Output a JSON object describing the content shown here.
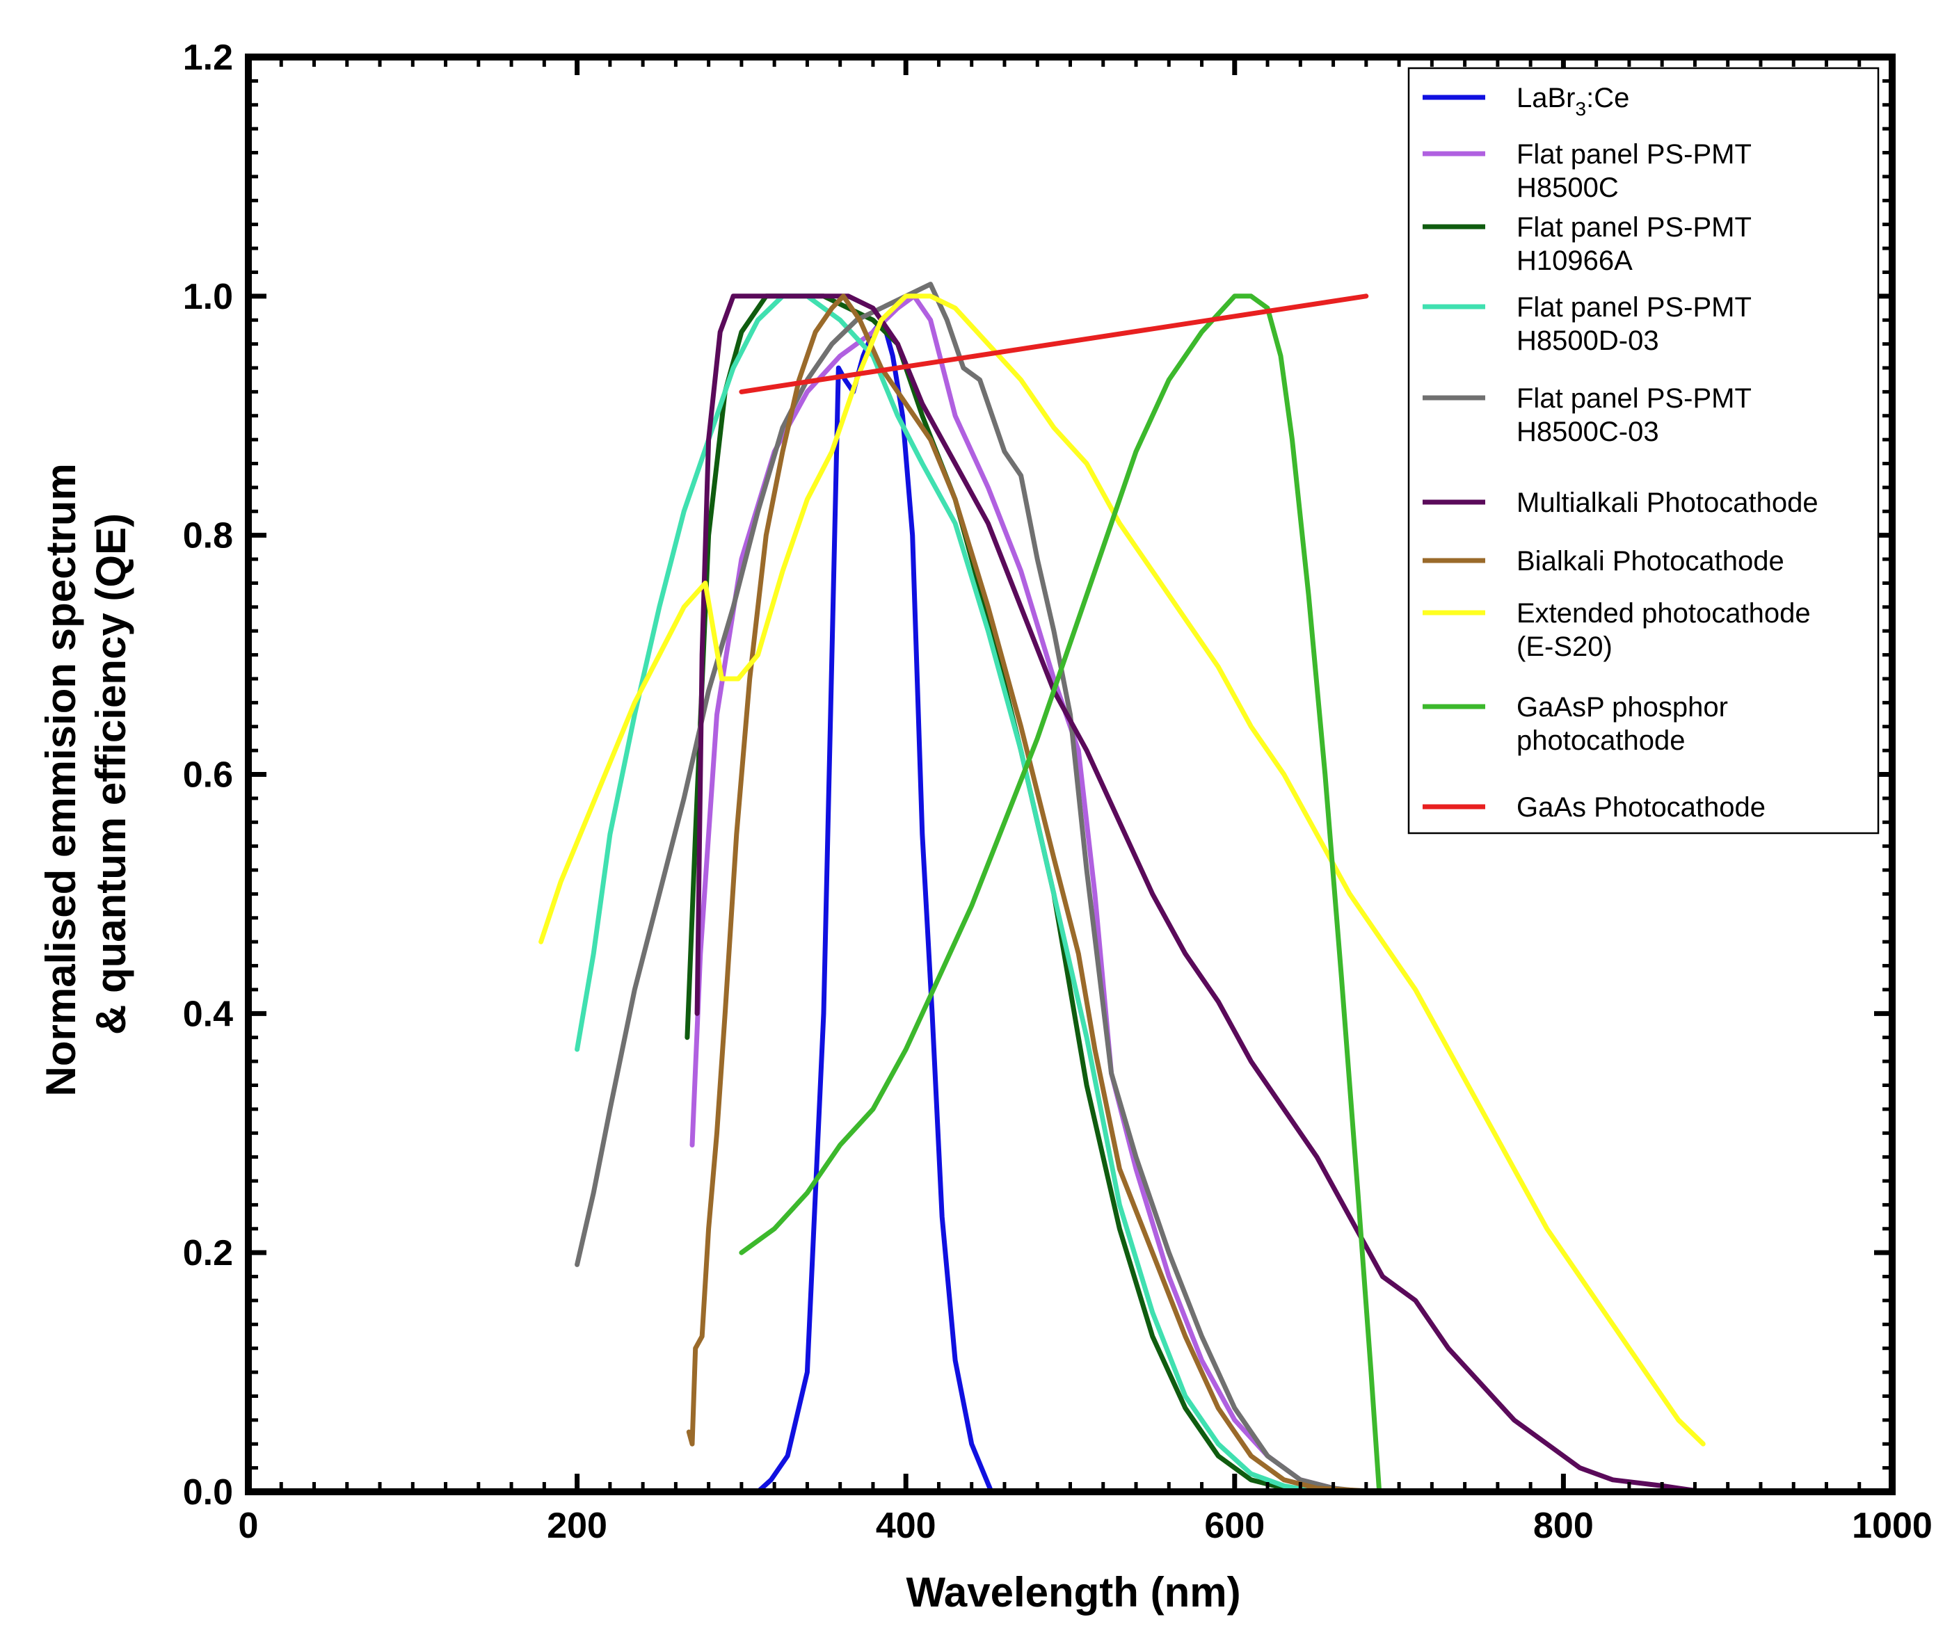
{
  "chart_data": {
    "type": "line",
    "title": "",
    "xlabel": "Wavelength (nm)",
    "ylabel_lines": [
      "Normalised emmision spectrum",
      "& quantum efficiency (QE)"
    ],
    "xlim": [
      0,
      1000
    ],
    "ylim": [
      0,
      1.2
    ],
    "x_ticks": [
      0,
      200,
      400,
      600,
      800,
      1000
    ],
    "x_tick_labels": [
      "0",
      "200",
      "400",
      "600",
      "800",
      "1000"
    ],
    "y_ticks": [
      0,
      0.2,
      0.4,
      0.6,
      0.8,
      1.0,
      1.2
    ],
    "y_tick_labels": [
      "0.0",
      "0.2",
      "0.4",
      "0.6",
      "0.8",
      "1.0",
      "1.2"
    ],
    "grid": false,
    "legend_position": "top-right",
    "series": [
      {
        "name": "LaBr3:Ce",
        "legend_main": "LaBr",
        "legend_sub": "3",
        "legend_tail": ":Ce",
        "color": "#1010e0",
        "points": [
          [
            310,
            0
          ],
          [
            318,
            0.01
          ],
          [
            328,
            0.03
          ],
          [
            340,
            0.1
          ],
          [
            350,
            0.4
          ],
          [
            355,
            0.7
          ],
          [
            359,
            0.94
          ],
          [
            363,
            0.93
          ],
          [
            368,
            0.92
          ],
          [
            374,
            0.95
          ],
          [
            380,
            0.97
          ],
          [
            386,
            0.98
          ],
          [
            392,
            0.95
          ],
          [
            398,
            0.9
          ],
          [
            404,
            0.8
          ],
          [
            410,
            0.55
          ],
          [
            416,
            0.4
          ],
          [
            422,
            0.23
          ],
          [
            430,
            0.11
          ],
          [
            440,
            0.04
          ],
          [
            452,
            0
          ]
        ]
      },
      {
        "name": "Flat panel PS-PMT H8500C",
        "legend_lines": [
          "Flat panel PS-PMT",
          "H8500C"
        ],
        "color": "#b060e0",
        "points": [
          [
            270,
            0.29
          ],
          [
            275,
            0.45
          ],
          [
            285,
            0.65
          ],
          [
            300,
            0.78
          ],
          [
            320,
            0.87
          ],
          [
            340,
            0.92
          ],
          [
            360,
            0.95
          ],
          [
            380,
            0.97
          ],
          [
            395,
            0.99
          ],
          [
            405,
            1.0
          ],
          [
            415,
            0.98
          ],
          [
            430,
            0.9
          ],
          [
            450,
            0.84
          ],
          [
            470,
            0.77
          ],
          [
            490,
            0.68
          ],
          [
            505,
            0.62
          ],
          [
            515,
            0.5
          ],
          [
            525,
            0.35
          ],
          [
            540,
            0.27
          ],
          [
            560,
            0.18
          ],
          [
            580,
            0.11
          ],
          [
            600,
            0.06
          ],
          [
            620,
            0.03
          ],
          [
            640,
            0.01
          ],
          [
            660,
            0.003
          ],
          [
            675,
            0
          ]
        ]
      },
      {
        "name": "Flat panel PS-PMT H10966A",
        "legend_lines": [
          "Flat panel PS-PMT",
          "H10966A"
        ],
        "color": "#0f5c0f",
        "points": [
          [
            267,
            0.38
          ],
          [
            272,
            0.55
          ],
          [
            280,
            0.8
          ],
          [
            290,
            0.92
          ],
          [
            300,
            0.97
          ],
          [
            315,
            1.0
          ],
          [
            330,
            1.0
          ],
          [
            350,
            1.0
          ],
          [
            365,
            0.99
          ],
          [
            380,
            0.98
          ],
          [
            395,
            0.96
          ],
          [
            410,
            0.9
          ],
          [
            430,
            0.83
          ],
          [
            450,
            0.73
          ],
          [
            470,
            0.62
          ],
          [
            490,
            0.5
          ],
          [
            510,
            0.34
          ],
          [
            530,
            0.22
          ],
          [
            550,
            0.13
          ],
          [
            570,
            0.07
          ],
          [
            590,
            0.03
          ],
          [
            610,
            0.01
          ],
          [
            630,
            0.003
          ],
          [
            645,
            0
          ]
        ]
      },
      {
        "name": "Flat panel PS-PMT H8500D-03",
        "legend_lines": [
          "Flat panel PS-PMT",
          "H8500D-03"
        ],
        "color": "#40e0b0",
        "points": [
          [
            200,
            0.37
          ],
          [
            210,
            0.45
          ],
          [
            220,
            0.55
          ],
          [
            235,
            0.65
          ],
          [
            250,
            0.74
          ],
          [
            265,
            0.82
          ],
          [
            280,
            0.88
          ],
          [
            295,
            0.94
          ],
          [
            310,
            0.98
          ],
          [
            325,
            1.0
          ],
          [
            340,
            1.0
          ],
          [
            360,
            0.98
          ],
          [
            380,
            0.95
          ],
          [
            395,
            0.9
          ],
          [
            410,
            0.86
          ],
          [
            430,
            0.81
          ],
          [
            450,
            0.72
          ],
          [
            470,
            0.62
          ],
          [
            490,
            0.5
          ],
          [
            510,
            0.38
          ],
          [
            530,
            0.24
          ],
          [
            550,
            0.15
          ],
          [
            570,
            0.08
          ],
          [
            590,
            0.04
          ],
          [
            610,
            0.015
          ],
          [
            630,
            0.005
          ],
          [
            650,
            0
          ]
        ]
      },
      {
        "name": "Flat panel PS-PMT H8500C-03",
        "legend_lines": [
          "Flat panel PS-PMT",
          "H8500C-03"
        ],
        "color": "#707070",
        "points": [
          [
            200,
            0.19
          ],
          [
            210,
            0.25
          ],
          [
            220,
            0.32
          ],
          [
            235,
            0.42
          ],
          [
            250,
            0.5
          ],
          [
            265,
            0.58
          ],
          [
            280,
            0.67
          ],
          [
            295,
            0.74
          ],
          [
            310,
            0.82
          ],
          [
            325,
            0.89
          ],
          [
            340,
            0.93
          ],
          [
            355,
            0.96
          ],
          [
            370,
            0.98
          ],
          [
            385,
            0.99
          ],
          [
            400,
            1.0
          ],
          [
            415,
            1.01
          ],
          [
            425,
            0.98
          ],
          [
            435,
            0.94
          ],
          [
            445,
            0.93
          ],
          [
            460,
            0.87
          ],
          [
            470,
            0.85
          ],
          [
            480,
            0.78
          ],
          [
            490,
            0.72
          ],
          [
            500,
            0.65
          ],
          [
            510,
            0.52
          ],
          [
            525,
            0.35
          ],
          [
            540,
            0.28
          ],
          [
            560,
            0.2
          ],
          [
            580,
            0.13
          ],
          [
            600,
            0.07
          ],
          [
            620,
            0.03
          ],
          [
            640,
            0.01
          ],
          [
            660,
            0.003
          ],
          [
            680,
            0
          ]
        ]
      },
      {
        "name": "Multialkali Photocathode",
        "legend_lines": [
          "Multialkali Photocathode"
        ],
        "color": "#5a0a5a",
        "points": [
          [
            273,
            0.4
          ],
          [
            276,
            0.7
          ],
          [
            280,
            0.88
          ],
          [
            287,
            0.97
          ],
          [
            295,
            1.0
          ],
          [
            310,
            1.0
          ],
          [
            325,
            1.0
          ],
          [
            345,
            1.0
          ],
          [
            365,
            1.0
          ],
          [
            380,
            0.99
          ],
          [
            395,
            0.96
          ],
          [
            410,
            0.91
          ],
          [
            430,
            0.86
          ],
          [
            450,
            0.81
          ],
          [
            470,
            0.74
          ],
          [
            490,
            0.67
          ],
          [
            510,
            0.62
          ],
          [
            530,
            0.56
          ],
          [
            550,
            0.5
          ],
          [
            570,
            0.45
          ],
          [
            590,
            0.41
          ],
          [
            610,
            0.36
          ],
          [
            630,
            0.32
          ],
          [
            650,
            0.28
          ],
          [
            670,
            0.23
          ],
          [
            690,
            0.18
          ],
          [
            710,
            0.16
          ],
          [
            730,
            0.12
          ],
          [
            750,
            0.09
          ],
          [
            770,
            0.06
          ],
          [
            790,
            0.04
          ],
          [
            810,
            0.02
          ],
          [
            830,
            0.01
          ],
          [
            860,
            0.005
          ],
          [
            885,
            0
          ]
        ]
      },
      {
        "name": "Bialkali Photocathode",
        "legend_lines": [
          "Bialkali Photocathode"
        ],
        "color": "#9a6a2a",
        "points": [
          [
            268,
            0.05
          ],
          [
            270,
            0.04
          ],
          [
            272,
            0.12
          ],
          [
            276,
            0.13
          ],
          [
            280,
            0.22
          ],
          [
            285,
            0.3
          ],
          [
            290,
            0.4
          ],
          [
            297,
            0.55
          ],
          [
            305,
            0.68
          ],
          [
            315,
            0.8
          ],
          [
            325,
            0.87
          ],
          [
            335,
            0.93
          ],
          [
            345,
            0.97
          ],
          [
            355,
            0.99
          ],
          [
            362,
            1.0
          ],
          [
            372,
            0.98
          ],
          [
            385,
            0.94
          ],
          [
            400,
            0.91
          ],
          [
            415,
            0.88
          ],
          [
            430,
            0.83
          ],
          [
            450,
            0.74
          ],
          [
            470,
            0.64
          ],
          [
            490,
            0.53
          ],
          [
            505,
            0.45
          ],
          [
            515,
            0.37
          ],
          [
            530,
            0.27
          ],
          [
            550,
            0.2
          ],
          [
            570,
            0.13
          ],
          [
            590,
            0.07
          ],
          [
            610,
            0.03
          ],
          [
            630,
            0.01
          ],
          [
            650,
            0.003
          ],
          [
            690,
            0
          ]
        ]
      },
      {
        "name": "Extended photocathode (E-S20)",
        "legend_lines": [
          "Extended photocathode",
          "(E-S20)"
        ],
        "color": "#ffff20",
        "points": [
          [
            178,
            0.46
          ],
          [
            190,
            0.51
          ],
          [
            205,
            0.56
          ],
          [
            220,
            0.61
          ],
          [
            235,
            0.66
          ],
          [
            250,
            0.7
          ],
          [
            265,
            0.74
          ],
          [
            278,
            0.76
          ],
          [
            288,
            0.68
          ],
          [
            298,
            0.68
          ],
          [
            310,
            0.7
          ],
          [
            325,
            0.77
          ],
          [
            340,
            0.83
          ],
          [
            355,
            0.87
          ],
          [
            370,
            0.93
          ],
          [
            385,
            0.98
          ],
          [
            400,
            1.0
          ],
          [
            415,
            1.0
          ],
          [
            430,
            0.99
          ],
          [
            450,
            0.96
          ],
          [
            470,
            0.93
          ],
          [
            490,
            0.89
          ],
          [
            510,
            0.86
          ],
          [
            530,
            0.81
          ],
          [
            550,
            0.77
          ],
          [
            570,
            0.73
          ],
          [
            590,
            0.69
          ],
          [
            610,
            0.64
          ],
          [
            630,
            0.6
          ],
          [
            650,
            0.55
          ],
          [
            670,
            0.5
          ],
          [
            690,
            0.46
          ],
          [
            710,
            0.42
          ],
          [
            730,
            0.37
          ],
          [
            750,
            0.32
          ],
          [
            770,
            0.27
          ],
          [
            790,
            0.22
          ],
          [
            810,
            0.18
          ],
          [
            830,
            0.14
          ],
          [
            850,
            0.1
          ],
          [
            870,
            0.06
          ],
          [
            885,
            0.04
          ]
        ]
      },
      {
        "name": "GaAsP phosphor photocathode",
        "legend_lines": [
          "GaAsP phosphor",
          "photocathode"
        ],
        "color": "#3cb82c",
        "points": [
          [
            300,
            0.2
          ],
          [
            320,
            0.22
          ],
          [
            340,
            0.25
          ],
          [
            360,
            0.29
          ],
          [
            380,
            0.32
          ],
          [
            400,
            0.37
          ],
          [
            420,
            0.43
          ],
          [
            440,
            0.49
          ],
          [
            460,
            0.56
          ],
          [
            480,
            0.63
          ],
          [
            500,
            0.71
          ],
          [
            520,
            0.79
          ],
          [
            540,
            0.87
          ],
          [
            560,
            0.93
          ],
          [
            580,
            0.97
          ],
          [
            600,
            1.0
          ],
          [
            610,
            1.0
          ],
          [
            620,
            0.99
          ],
          [
            628,
            0.95
          ],
          [
            635,
            0.88
          ],
          [
            645,
            0.75
          ],
          [
            655,
            0.6
          ],
          [
            665,
            0.43
          ],
          [
            675,
            0.25
          ],
          [
            683,
            0.1
          ],
          [
            688,
            0
          ]
        ]
      },
      {
        "name": "GaAs Photocathode",
        "legend_lines": [
          "GaAs Photocathode"
        ],
        "color": "#e82020",
        "points": [
          [
            300,
            0.92
          ],
          [
            680,
            1.0
          ]
        ]
      }
    ]
  }
}
